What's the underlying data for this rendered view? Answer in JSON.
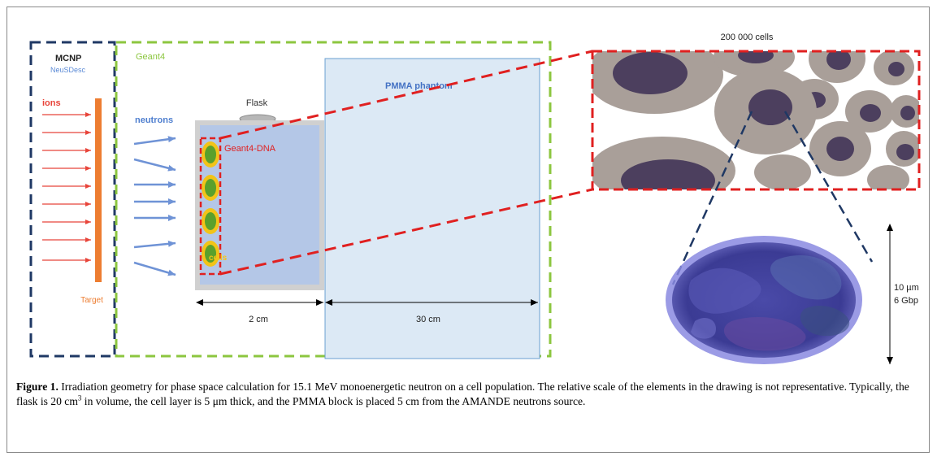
{
  "labels": {
    "mcnp": "MCNP",
    "neusdesc": "NeuSDesc",
    "ions": "ions",
    "target": "Target",
    "geant4": "Geant4",
    "neutrons": "neutrons",
    "flask": "Flask",
    "geant4_dna": "Geant4-DNA",
    "cells": "cells",
    "pmma_phantom": "PMMA phantom",
    "dim_flask": "2 cm",
    "dim_phantom": "30 cm",
    "cell_count": "200 000 cells",
    "nucleus_size": "10 µm",
    "nucleus_genome": "6 Gbp"
  },
  "caption": {
    "label": "Figure 1.",
    "text_before_sup": " Irradiation geometry for phase space calculation for 15.1 MeV monoenergetic neutron on a cell population. The relative scale of the elements in the drawing is not representative. Typically, the flask is 20 cm",
    "sup": "3",
    "text_after_sup": " in volume, the cell layer is 5 μm thick, and the PMMA block is placed 5 cm from the AMANDE neutrons source."
  },
  "colors": {
    "mcnp_box": "#1f3864",
    "geant4_box": "#8cc63f",
    "ions_arrow": "#e8443a",
    "target": "#ed7d31",
    "neutron_arrow": "#6f93d6",
    "flask_fill": "#b4c7e7",
    "pmma_fill": "#dce9f5",
    "dna_box": "#e02020",
    "cell_outer": "#f2c418",
    "cell_inner": "#5aa02c",
    "tissue_cell": "#a99f99",
    "tissue_nucleus": "#4c3f5e",
    "nucleus_fill": "#3f3f9a"
  }
}
